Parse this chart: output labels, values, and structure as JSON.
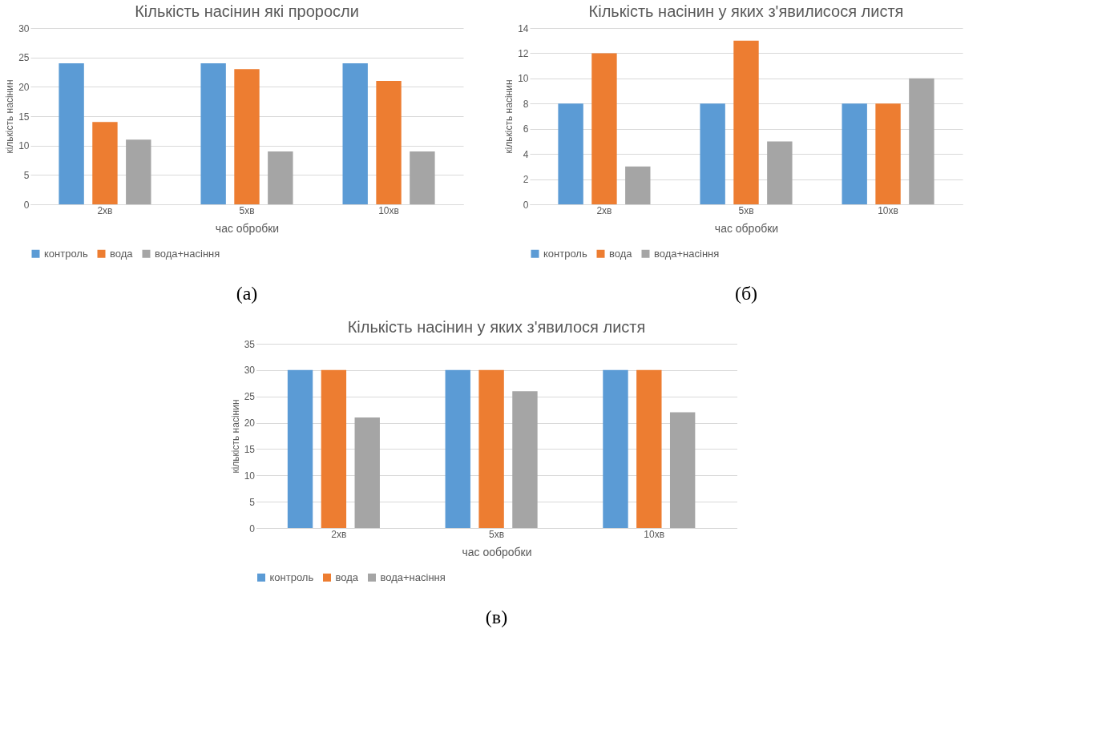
{
  "chart_data": [
    {
      "type": "bar",
      "title": "Кількість насінин які проросли",
      "xlabel": "час обробки",
      "ylabel": "кількість насінин",
      "categories": [
        "2хв",
        "5хв",
        "10хв"
      ],
      "series": [
        {
          "name": "контроль",
          "color": "#5b9bd5",
          "values": [
            24,
            24,
            24
          ]
        },
        {
          "name": "вода",
          "color": "#ed7d31",
          "values": [
            14,
            23,
            21
          ]
        },
        {
          "name": "вода+насіння",
          "color": "#a5a5a5",
          "values": [
            11,
            9,
            9
          ]
        }
      ],
      "ylim": [
        0,
        30
      ],
      "yticks": [
        0,
        5,
        10,
        15,
        20,
        25,
        30
      ],
      "grid": "y",
      "legend": "bottom",
      "annotations": [
        "(а)"
      ]
    },
    {
      "type": "bar",
      "title": "Кількість насінин у яких з'явилисося листя",
      "xlabel": "час обробки",
      "ylabel": "кількість насінин",
      "categories": [
        "2хв",
        "5хв",
        "10хв"
      ],
      "series": [
        {
          "name": "контроль",
          "color": "#5b9bd5",
          "values": [
            8,
            8,
            8
          ]
        },
        {
          "name": "вода",
          "color": "#ed7d31",
          "values": [
            12,
            13,
            8
          ]
        },
        {
          "name": "вода+насіння",
          "color": "#a5a5a5",
          "values": [
            3,
            5,
            10
          ]
        }
      ],
      "ylim": [
        0,
        14
      ],
      "yticks": [
        0,
        2,
        4,
        6,
        8,
        10,
        12,
        14
      ],
      "grid": "y",
      "legend": "bottom",
      "annotations": [
        "(б)"
      ]
    },
    {
      "type": "bar",
      "title": "Кількість насінин у яких з'явилося листя",
      "xlabel": "час ообробки",
      "ylabel": "кількість насінин",
      "categories": [
        "2хв",
        "5хв",
        "10хв"
      ],
      "series": [
        {
          "name": "контроль",
          "color": "#5b9bd5",
          "values": [
            30,
            30,
            30
          ]
        },
        {
          "name": "вода",
          "color": "#ed7d31",
          "values": [
            30,
            30,
            30
          ]
        },
        {
          "name": "вода+насіння",
          "color": "#a5a5a5",
          "values": [
            21,
            26,
            22
          ]
        }
      ],
      "ylim": [
        0,
        35
      ],
      "yticks": [
        0,
        5,
        10,
        15,
        20,
        25,
        30,
        35
      ],
      "grid": "y",
      "legend": "bottom",
      "annotations": [
        "(в)"
      ]
    }
  ]
}
